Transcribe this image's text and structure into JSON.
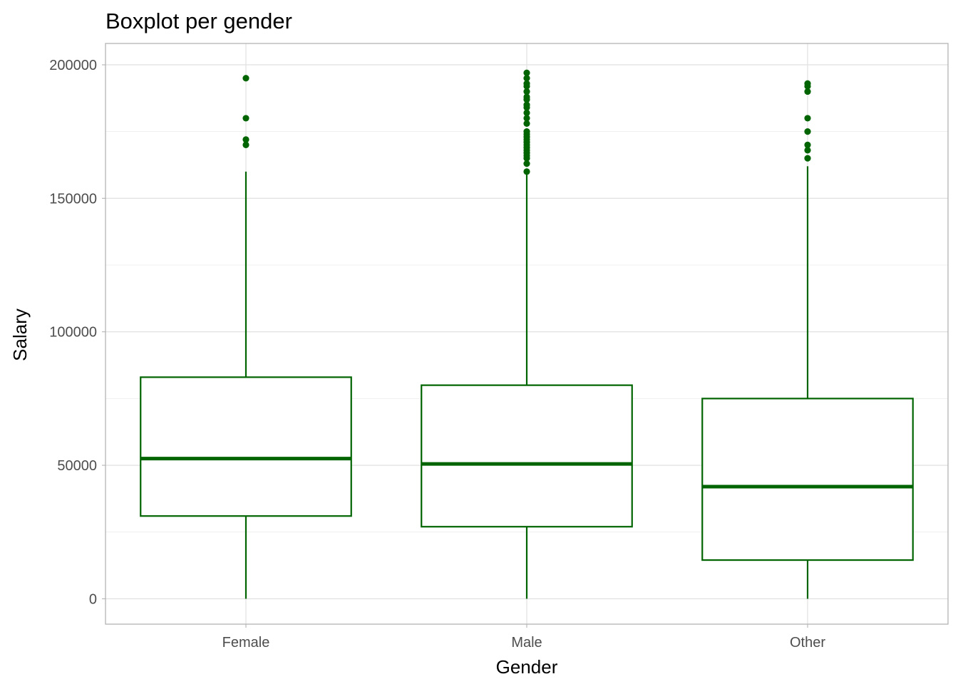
{
  "chart_data": {
    "type": "boxplot",
    "title": "Boxplot per gender",
    "xlabel": "Gender",
    "ylabel": "Salary",
    "categories": [
      "Female",
      "Male",
      "Other"
    ],
    "ylim": [
      -9500,
      208000
    ],
    "yticks": [
      0,
      50000,
      100000,
      150000,
      200000
    ],
    "ytick_labels": [
      "0",
      "50000",
      "100000",
      "150000",
      "200000"
    ],
    "grid": true,
    "color": "#006400",
    "boxes": [
      {
        "category": "Female",
        "whisker_low": 0,
        "q1": 31000,
        "median": 52500,
        "q3": 83000,
        "whisker_high": 160000,
        "outliers": [
          170000,
          172000,
          180000,
          195000
        ]
      },
      {
        "category": "Male",
        "whisker_low": 0,
        "q1": 27000,
        "median": 50500,
        "q3": 80000,
        "whisker_high": 160000,
        "outliers": [
          160000,
          163000,
          165000,
          166000,
          167000,
          168000,
          169000,
          170000,
          171000,
          172000,
          173000,
          174000,
          175000,
          178000,
          180000,
          182000,
          184000,
          185000,
          187000,
          188000,
          190000,
          192000,
          193000,
          195000,
          197000
        ]
      },
      {
        "category": "Other",
        "whisker_low": 0,
        "q1": 14500,
        "median": 42000,
        "q3": 75000,
        "whisker_high": 162000,
        "outliers": [
          165000,
          168000,
          170000,
          175000,
          180000,
          190000,
          192000,
          193000
        ]
      }
    ]
  }
}
